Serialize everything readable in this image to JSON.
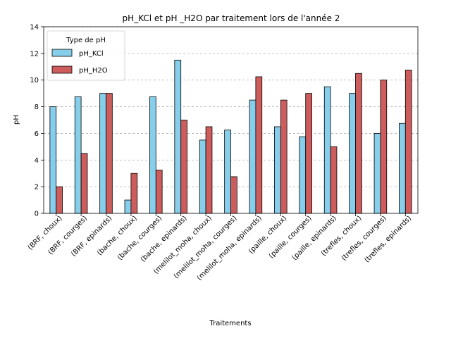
{
  "chart_data": {
    "type": "bar",
    "title": "pH_KCl et pH _H2O par traitement lors de l'année 2",
    "xlabel": "Traitements",
    "ylabel": "pH",
    "ylim": [
      0,
      14
    ],
    "yticks": [
      0,
      2,
      4,
      6,
      8,
      10,
      12,
      14
    ],
    "grid": "y-dashed",
    "legend": {
      "title": "Type de pH",
      "placement": "top-left"
    },
    "categories": [
      "(BRF, choux)",
      "(BRF, courges)",
      "(BRF, epinards)",
      "(bache, choux)",
      "(bache, courges)",
      "(bache, epinards)",
      "(melilot_moha, choux)",
      "(melilot_moha, courges)",
      "(melilot_moha, epinards)",
      "(paille, choux)",
      "(paille, courges)",
      "(paille, epinards)",
      "(trefles, choux)",
      "(trefles, courges)",
      "(trefles, epinards)"
    ],
    "series": [
      {
        "name": "pH_KCl",
        "color": "#87CEEB",
        "values": [
          8.0,
          8.75,
          9.0,
          1.0,
          8.75,
          11.5,
          5.5,
          6.25,
          8.5,
          6.5,
          5.75,
          9.5,
          9.0,
          6.0,
          6.75
        ]
      },
      {
        "name": "pH_H2O",
        "color": "#CD5C5C",
        "values": [
          2.0,
          4.5,
          9.0,
          3.0,
          3.25,
          7.0,
          6.5,
          2.75,
          10.25,
          8.5,
          9.0,
          5.0,
          10.5,
          10.0,
          10.75
        ]
      }
    ]
  }
}
